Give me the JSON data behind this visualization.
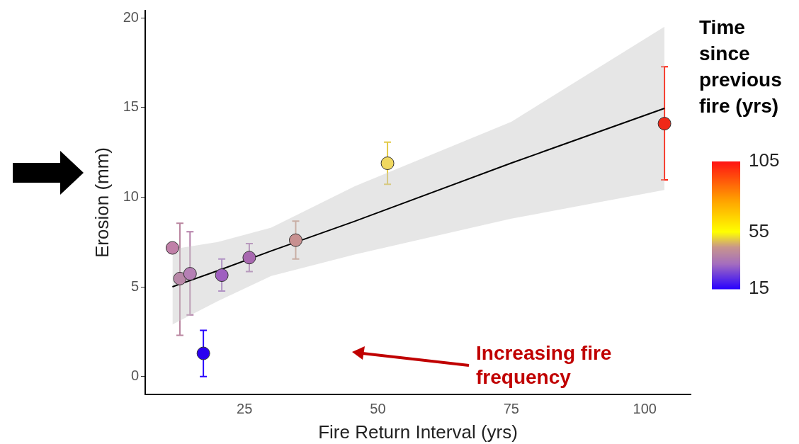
{
  "chart_data": {
    "type": "scatter",
    "xlabel": "Fire Return Interval (yrs)",
    "ylabel": "Erosion (mm)",
    "clabel": "Time since previous fire (yrs)",
    "xlim": [
      6.4,
      108.6
    ],
    "ylim": [
      -1,
      20.4
    ],
    "xticks": [
      25,
      50,
      75,
      100
    ],
    "yticks": [
      0,
      5,
      10,
      15,
      20
    ],
    "clim": [
      15,
      105
    ],
    "cticks": [
      15,
      55,
      105
    ],
    "grid": false,
    "legend": false,
    "annotations": [
      "Increasing fire frequency"
    ],
    "series": [
      {
        "marker": "circle",
        "colors": [
          "#c080a8",
          "#b888a8",
          "#b580b5",
          "#2a00f0",
          "#9f5fc0",
          "#a868b0",
          "#c89090",
          "#f0d860",
          "#f02818"
        ],
        "x": [
          11.5,
          12.9,
          14.8,
          17.3,
          20.75,
          25.9,
          34.6,
          51.8,
          103.7
        ],
        "values": [
          7.17,
          5.46,
          5.73,
          1.29,
          5.65,
          6.63,
          7.6,
          11.89,
          14.1
        ],
        "cvalues": [
          40,
          40,
          38,
          15,
          32,
          35,
          45,
          50,
          102
        ],
        "errors": [
          null,
          [
            2.3,
            8.55
          ],
          [
            3.43,
            8.07
          ],
          [
            0,
            2.57
          ],
          [
            4.76,
            6.55
          ],
          [
            5.85,
            7.41
          ],
          [
            6.55,
            8.66
          ],
          [
            10.72,
            13.07
          ],
          [
            10.96,
            17.27
          ]
        ]
      },
      {
        "type": "line",
        "color": "#000000",
        "x": [
          11.5,
          20,
          30,
          45.6,
          75,
          103.7
        ],
        "values": [
          5.0,
          5.9,
          7.0,
          8.65,
          11.9,
          14.95
        ],
        "lower": [
          2.9,
          4.2,
          5.6,
          6.8,
          8.8,
          10.4
        ],
        "upper": [
          7.1,
          7.5,
          8.3,
          10.6,
          14.2,
          19.5
        ]
      }
    ]
  }
}
